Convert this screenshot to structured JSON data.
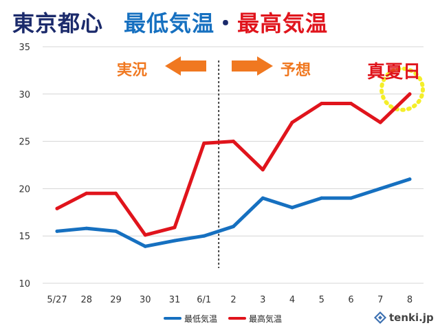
{
  "title": {
    "part1": "東京都心",
    "part2": "最低気温",
    "separator": "・",
    "part3": "最高気温"
  },
  "annotations": {
    "actual": "実況",
    "forecast": "予想",
    "midsummer": "真夏日"
  },
  "logo": {
    "text": "tenki.jp"
  },
  "colors": {
    "navy": "#1b2a6b",
    "blue": "#1670c0",
    "red": "#e0141c",
    "orange": "#f07820",
    "yellow": "#f4ee2a",
    "grid": "#d4d4d4"
  },
  "chart_data": {
    "type": "line",
    "categories": [
      "5/27",
      "28",
      "29",
      "30",
      "31",
      "6/1",
      "2",
      "3",
      "4",
      "5",
      "6",
      "7",
      "8"
    ],
    "yticks": [
      10,
      15,
      20,
      25,
      30,
      35
    ],
    "ylim": [
      10,
      35
    ],
    "grid": true,
    "legend_position": "bottom",
    "divider_after_category": "6/1",
    "series": [
      {
        "name": "最低気温",
        "color": "#1670c0",
        "values": [
          15.5,
          15.8,
          15.5,
          13.9,
          14.5,
          15.0,
          16.0,
          19.0,
          18.0,
          19.0,
          19.0,
          20.0,
          21.0
        ]
      },
      {
        "name": "最高気温",
        "color": "#e0141c",
        "values": [
          17.9,
          19.5,
          19.5,
          15.1,
          15.9,
          24.8,
          25.0,
          22.0,
          27.0,
          29.0,
          29.0,
          27.0,
          30.0
        ]
      }
    ]
  }
}
